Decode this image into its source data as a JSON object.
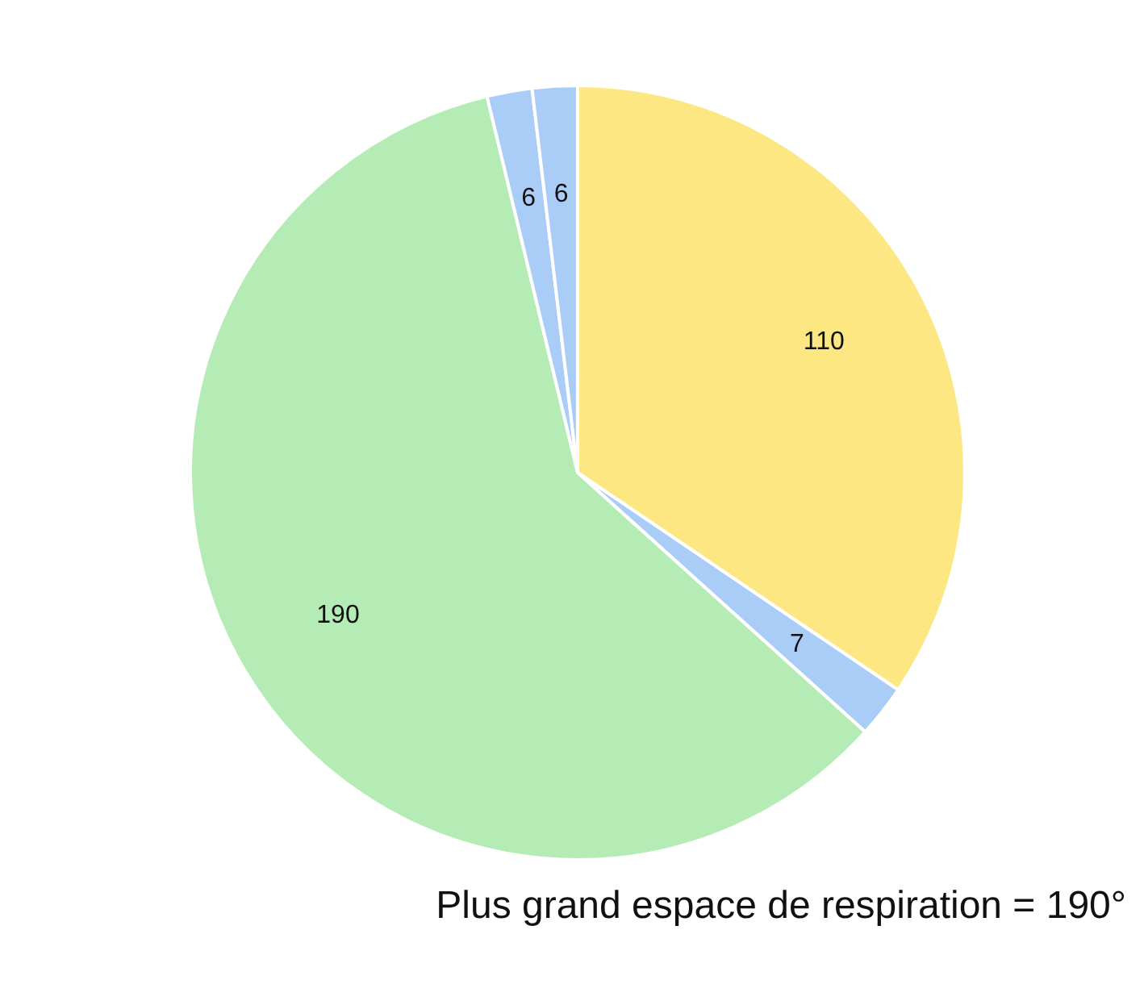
{
  "chart_data": {
    "type": "pie",
    "categories": [
      null,
      null,
      null,
      null,
      null
    ],
    "values": [
      110,
      7,
      190,
      6,
      6
    ],
    "colors": [
      "#fde783",
      "#a9cdf7",
      "#b5ebb5",
      "#a9cdf7",
      "#a9cdf7"
    ],
    "data_labels": true,
    "annotations": [
      "Plus grand espace de respiration = 190°"
    ]
  }
}
